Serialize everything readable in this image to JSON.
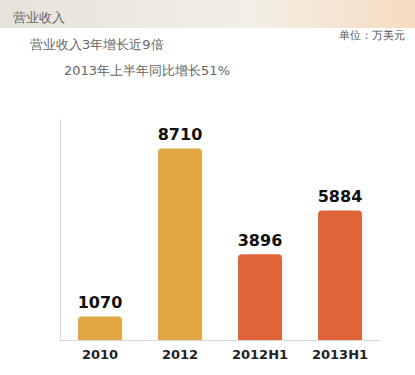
{
  "chart_data": {
    "type": "bar",
    "title": "营业收入",
    "subtitle": [
      "营业收入3年增长近9倍",
      "2013年上半年同比增长51%"
    ],
    "annotations": [
      "单位：万美元"
    ],
    "categories": [
      "2010",
      "2012",
      "2012H1",
      "2013H1"
    ],
    "values": [
      1070,
      8710,
      3896,
      5884
    ],
    "colors": [
      "#e2a843",
      "#e2a843",
      "#e0633a",
      "#e0633a"
    ],
    "ylim": [
      0,
      10000
    ],
    "grid": false,
    "data_labels": true,
    "tick_labels": "x"
  }
}
